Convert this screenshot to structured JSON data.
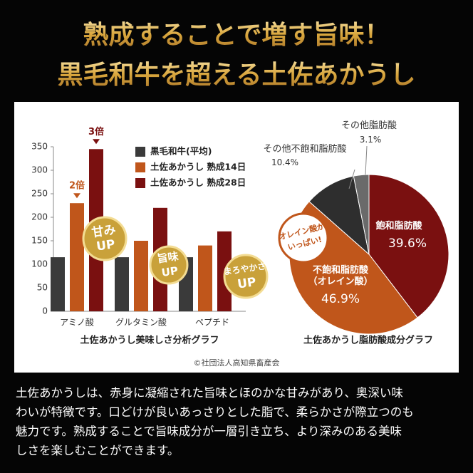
{
  "header": {
    "lines": [
      "熟成することで増す旨味！",
      "黒毛和牛を超える土佐あかうし"
    ]
  },
  "chart_data": [
    {
      "type": "bar",
      "title": "土佐あかうし美味しさ分析グラフ",
      "categories": [
        "アミノ酸",
        "グルタミン酸",
        "ペプチド"
      ],
      "series": [
        {
          "name": "黒毛和牛(平均)",
          "color": "#3a3a3a",
          "values": [
            115,
            115,
            115
          ]
        },
        {
          "name": "土佐あかうし 熟成14日",
          "color": "#c0561b",
          "values": [
            230,
            150,
            140
          ]
        },
        {
          "name": "土佐あかうし 熟成28日",
          "color": "#7a1010",
          "values": [
            345,
            220,
            170
          ]
        }
      ],
      "ylim": [
        0,
        350
      ],
      "yticks": [
        0,
        50,
        100,
        150,
        200,
        250,
        300,
        350
      ],
      "annotations": [
        "2倍",
        "3倍"
      ],
      "badges": [
        {
          "lines": [
            "甘み",
            "UP"
          ]
        },
        {
          "lines": [
            "旨味",
            "UP"
          ]
        },
        {
          "lines": [
            "まろやかさ",
            "UP"
          ]
        }
      ]
    },
    {
      "type": "pie",
      "title": "土佐あかうし脂肪酸成分グラフ",
      "categories": [
        "飽和脂肪酸",
        "不飽和脂肪酸\n（オレイン酸）",
        "その他不飽和脂肪酸",
        "その他脂肪酸"
      ],
      "values": [
        39.6,
        46.9,
        10.4,
        3.1
      ],
      "value_labels": [
        "39.6%",
        "46.9%",
        "10.4%",
        "3.1%"
      ],
      "colors": [
        "#7a1010",
        "#c0561b",
        "#2e2e2e",
        "#6a6a6a"
      ],
      "badges": [
        {
          "lines": [
            "オレイン酸が",
            "いっぱい!"
          ]
        }
      ]
    }
  ],
  "credit": "©社団法人高知県畜産会",
  "description": {
    "lines": [
      "土佐あかうしは、赤身に凝縮された旨味とほのかな甘みがあり、奥深い味",
      "わいが特徴です。口どけが良いあっさりとした脂で、柔らかさが際立つのも",
      "魅力です。熟成することで旨味成分が一層引き立ち、より深みのある美味",
      "しさを楽しむことができます。"
    ]
  }
}
